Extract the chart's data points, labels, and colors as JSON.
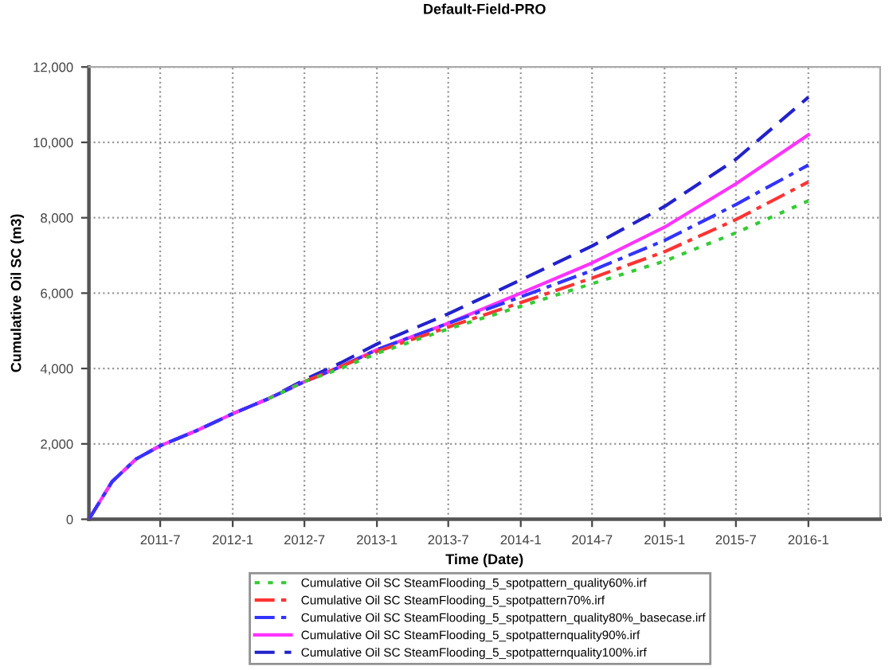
{
  "chart_data": {
    "type": "line",
    "title": "Default-Field-PRO",
    "xlabel": "Time (Date)",
    "ylabel": "Cumulative Oil SC (m3)",
    "xlim": [
      "2011-01-01",
      "2016-07-01"
    ],
    "ylim": [
      0,
      12000
    ],
    "xticks": [
      {
        "value": "2011-07-01",
        "label": "2011-7"
      },
      {
        "value": "2012-01-01",
        "label": "2012-1"
      },
      {
        "value": "2012-07-01",
        "label": "2012-7"
      },
      {
        "value": "2013-01-01",
        "label": "2013-1"
      },
      {
        "value": "2013-07-01",
        "label": "2013-7"
      },
      {
        "value": "2014-01-01",
        "label": "2014-1"
      },
      {
        "value": "2014-07-01",
        "label": "2014-7"
      },
      {
        "value": "2015-01-01",
        "label": "2015-1"
      },
      {
        "value": "2015-07-01",
        "label": "2015-7"
      },
      {
        "value": "2016-01-01",
        "label": "2016-1"
      }
    ],
    "yticks": [
      {
        "value": 0,
        "label": "0"
      },
      {
        "value": 2000,
        "label": "2,000"
      },
      {
        "value": 4000,
        "label": "4,000"
      },
      {
        "value": 6000,
        "label": "6,000"
      },
      {
        "value": 8000,
        "label": "8,000"
      },
      {
        "value": 10000,
        "label": "10,000"
      },
      {
        "value": 12000,
        "label": "12,000"
      }
    ],
    "x": [
      "2011-01-01",
      "2011-03-01",
      "2011-05-01",
      "2011-07-01",
      "2011-10-01",
      "2012-01-01",
      "2012-04-01",
      "2012-07-01",
      "2012-10-01",
      "2013-01-01",
      "2013-07-01",
      "2014-01-01",
      "2014-07-01",
      "2015-01-01",
      "2015-07-01",
      "2016-01-01"
    ],
    "grid": true,
    "legend": "bottom",
    "marker": "none",
    "series": [
      {
        "name": "Cumulative Oil SC SteamFlooding_5_spotpattern_quality60%.irf",
        "color": "#33cc33",
        "line_style": "dotted",
        "values": [
          null,
          null,
          null,
          null,
          null,
          null,
          3200,
          3650,
          4000,
          4400,
          5050,
          5650,
          6250,
          6850,
          7600,
          8450
        ]
      },
      {
        "name": "Cumulative Oil SC SteamFlooding_5_spotpattern70%.irf",
        "color": "#ff3333",
        "line_style": "dashdot",
        "values": [
          null,
          null,
          null,
          null,
          null,
          null,
          null,
          3650,
          4050,
          4450,
          5100,
          5750,
          6400,
          7100,
          7950,
          8950
        ]
      },
      {
        "name": "Cumulative Oil SC SteamFlooding_5_spotpattern_quality80%_basecase.irf",
        "color": "#3333ff",
        "line_style": "dashdot",
        "values": [
          0,
          1000,
          1600,
          1950,
          2350,
          2800,
          3200,
          3650,
          4050,
          4500,
          5200,
          5900,
          6600,
          7400,
          8350,
          9400
        ]
      },
      {
        "name": "Cumulative Oil SC SteamFlooding_5_spotpatternquality90%.irf",
        "color": "#ff33ff",
        "line_style": "solid",
        "values": [
          0,
          1000,
          1600,
          1950,
          2350,
          2800,
          3200,
          3650,
          4050,
          4500,
          5200,
          6000,
          6800,
          7750,
          8900,
          10200
        ]
      },
      {
        "name": "Cumulative Oil SC SteamFlooding_5_spotpatternquality100%.irf",
        "color": "#2222cc",
        "line_style": "dashed",
        "values": [
          0,
          1000,
          1600,
          1950,
          2350,
          2800,
          3200,
          3700,
          4150,
          4650,
          5450,
          6350,
          7250,
          8300,
          9550,
          11200
        ]
      }
    ]
  }
}
